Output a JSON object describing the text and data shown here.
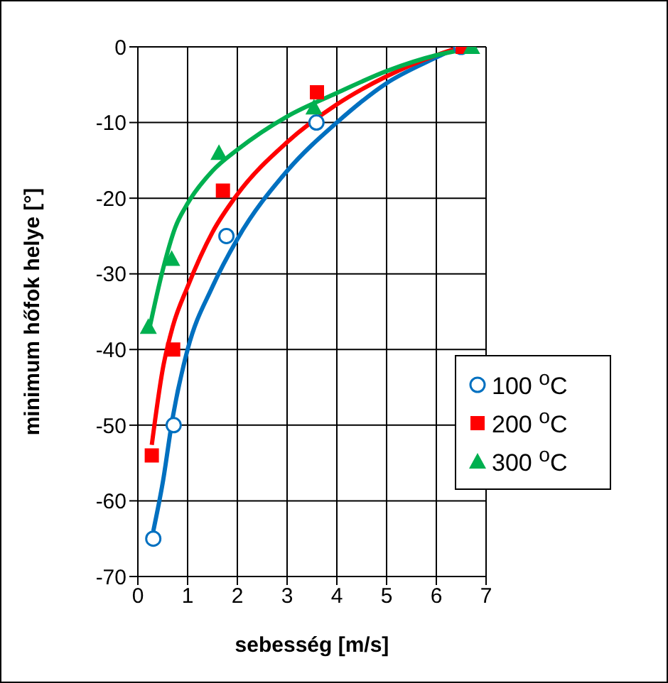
{
  "chart_data": {
    "type": "scatter",
    "xlabel": "sebesség [m/s]",
    "ylabel": "minimum hőfok helye [°]",
    "xlim": [
      0,
      7
    ],
    "xticks": [
      0,
      1,
      2,
      3,
      4,
      5,
      6,
      7
    ],
    "ylim": [
      -70,
      0
    ],
    "yticks": [
      -70,
      -60,
      -50,
      -40,
      -30,
      -20,
      -10,
      0
    ],
    "grid": true,
    "legend": "right",
    "series": [
      {
        "name": "100 $^{o}$C",
        "color": "#0070c0",
        "marker": "circle",
        "x": [
          0.31,
          0.72,
          1.78,
          3.59,
          6.5
        ],
        "values": [
          -65,
          -50,
          -25,
          -10,
          0
        ]
      },
      {
        "name": "200 $^{o}$C",
        "color": "#ff0000",
        "marker": "square",
        "x": [
          0.28,
          0.71,
          1.71,
          3.6,
          6.53
        ],
        "values": [
          -54,
          -40,
          -19,
          -6,
          0
        ]
      },
      {
        "name": "300 $^{o}$C",
        "color": "#00b050",
        "marker": "triangle",
        "x": [
          0.21,
          0.68,
          1.63,
          3.54,
          6.71
        ],
        "values": [
          -37,
          -28,
          -14,
          -8,
          0
        ]
      },
      {
        "type": "line",
        "color": "#0070c0",
        "marker": "none",
        "x": [
          0.31,
          0.5,
          0.7,
          1,
          1.5,
          2,
          3,
          4,
          5,
          6,
          6.45
        ],
        "values": [
          -64,
          -57.6,
          -49,
          -40,
          -31.7,
          -25.4,
          -16.4,
          -10,
          -4.8,
          -1.4,
          0
        ]
      },
      {
        "type": "line",
        "color": "#ff0000",
        "marker": "none",
        "x": [
          0.28,
          0.5,
          0.7,
          1,
          1.5,
          2,
          3,
          4,
          5,
          6,
          6.5
        ],
        "values": [
          -52.6,
          -42.6,
          -37,
          -31.7,
          -24.5,
          -19.5,
          -12.6,
          -7.6,
          -3.9,
          -1.1,
          0
        ]
      },
      {
        "type": "line",
        "color": "#00b050",
        "marker": "none",
        "x": [
          0.22,
          0.5,
          0.75,
          1,
          1.5,
          2,
          3,
          4,
          5,
          6,
          6.6
        ],
        "values": [
          -37.6,
          -29.5,
          -23.9,
          -20.7,
          -16.4,
          -13.6,
          -9.2,
          -6.1,
          -3.2,
          -1.1,
          -0.3
        ]
      }
    ]
  }
}
